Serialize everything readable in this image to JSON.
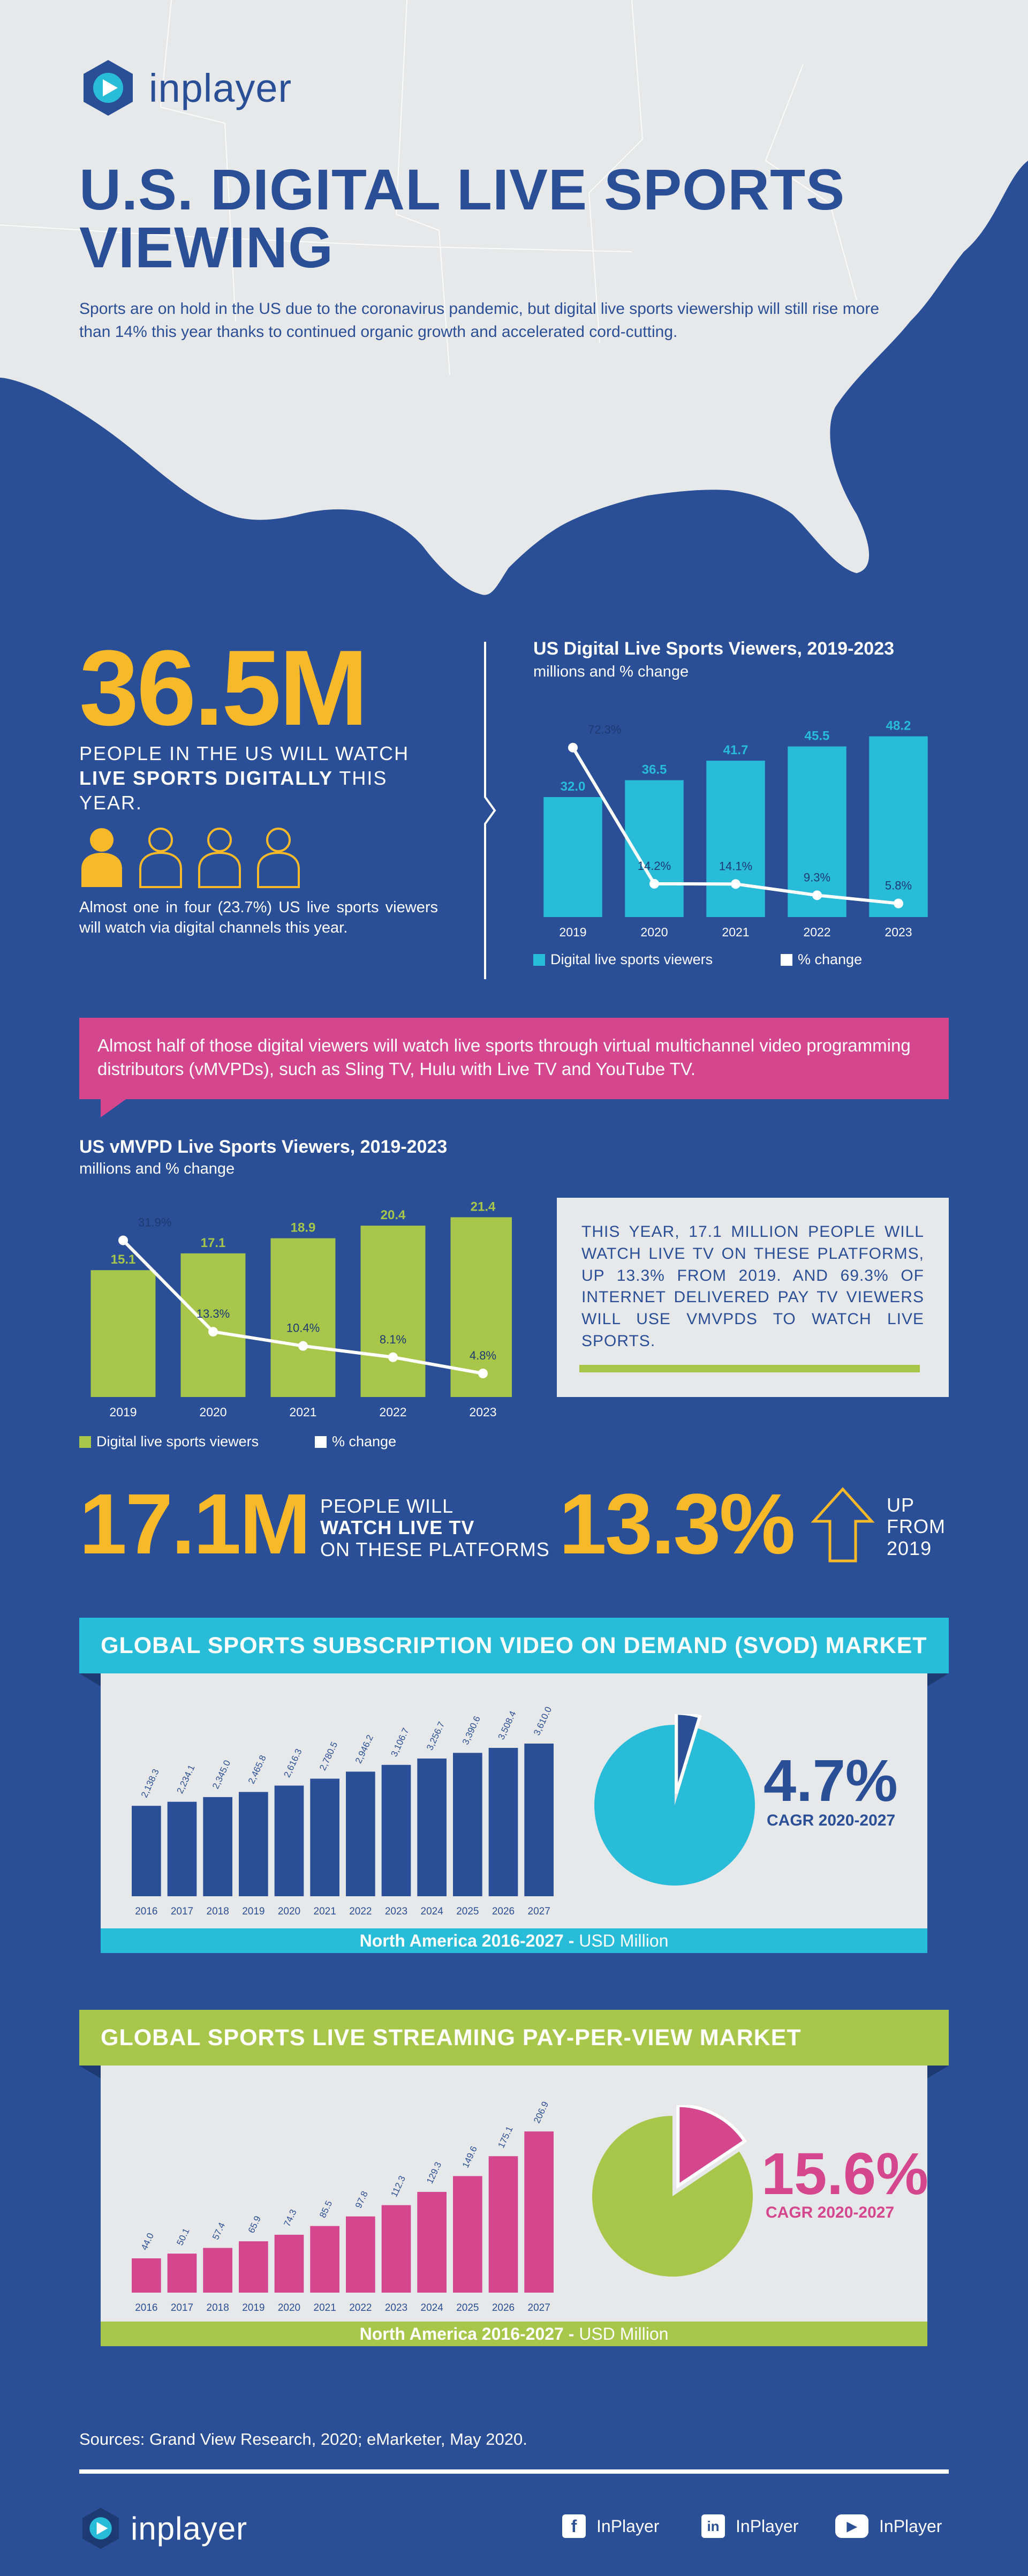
{
  "brand": {
    "name": "inplayer"
  },
  "hero": {
    "title": "U.S. DIGITAL LIVE SPORTS VIEWING",
    "subtitle": "Sports are on hold in the US due to the coronavirus pandemic, but digital live sports viewership will still rise more than 14% this year thanks to continued organic growth and accelerated cord-cutting."
  },
  "stat1": {
    "value": "36.5M",
    "line1": "PEOPLE IN THE US WILL WATCH",
    "bold": "LIVE SPORTS DIGITALLY",
    "rest": " THIS YEAR.",
    "caption": "Almost one in four (23.7%) US live sports viewers will watch via digital channels this year."
  },
  "banner": {
    "text": "Almost half of those digital viewers will watch live sports through virtual multichannel video programming distributors (vMVPDs), such as Sling TV, Hulu with Live TV and YouTube TV."
  },
  "info_box": {
    "text": "THIS YEAR, 17.1 MILLION PEOPLE WILL WATCH LIVE TV ON THESE PLATFORMS, UP 13.3% FROM 2019. AND 69.3% OF INTERNET DELIVERED PAY TV VIEWERS WILL USE VMVPDS TO WATCH LIVE SPORTS."
  },
  "stat2": {
    "value": "17.1M",
    "line1": "PEOPLE WILL",
    "bold": "WATCH LIVE TV",
    "line3": "ON THESE PLATFORMS",
    "pct": "13.3%",
    "up_line1": "UP",
    "up_line2": "FROM",
    "up_line3": "2019"
  },
  "svod": {
    "header": "GLOBAL SPORTS SUBSCRIPTION VIDEO ON DEMAND (SVOD) MARKET",
    "cagr": "4.7%",
    "cagr_label": "CAGR 2020-2027",
    "footer_bold": "North America 2016-2027 - ",
    "footer_rest": "USD Million"
  },
  "ppv": {
    "header": "GLOBAL SPORTS LIVE STREAMING PAY-PER-VIEW MARKET",
    "cagr": "15.6%",
    "cagr_label": "CAGR 2020-2027",
    "footer_bold": "North America 2016-2027 - ",
    "footer_rest": "USD Million"
  },
  "sources": "Sources: Grand View Research, 2020; eMarketer, May 2020.",
  "social": [
    {
      "icon": "facebook-icon",
      "label": "InPlayer"
    },
    {
      "icon": "linkedin-icon",
      "label": "InPlayer"
    },
    {
      "icon": "youtube-icon",
      "label": "InPlayer"
    }
  ],
  "colors": {
    "navy": "#2a4f96",
    "cyan": "#29bcd9",
    "green": "#a7c64a",
    "pink": "#d4478f",
    "yellow": "#f8b928",
    "light": "#e7e8ea"
  },
  "chart_data": [
    {
      "type": "bar",
      "title": "US Digital Live Sports Viewers, 2019-2023",
      "subtitle": "millions and % change",
      "categories": [
        "2019",
        "2020",
        "2021",
        "2022",
        "2023"
      ],
      "series": [
        {
          "name": "Digital live sports viewers",
          "values": [
            32.0,
            36.5,
            41.7,
            45.5,
            48.2
          ],
          "labels": [
            "32.0",
            "36.5",
            "41.7",
            "45.5",
            "48.2"
          ]
        },
        {
          "name": "% change",
          "type": "line",
          "values": [
            72.3,
            14.2,
            14.1,
            9.3,
            5.8
          ],
          "labels": [
            "72.3%",
            "14.2%",
            "14.1%",
            "9.3%",
            "5.8%"
          ]
        }
      ]
    },
    {
      "type": "bar",
      "title": "US vMVPD Live Sports Viewers, 2019-2023",
      "subtitle": "millions and % change",
      "categories": [
        "2019",
        "2020",
        "2021",
        "2022",
        "2023"
      ],
      "series": [
        {
          "name": "Digital live sports viewers",
          "values": [
            15.1,
            17.1,
            18.9,
            20.4,
            21.4
          ],
          "labels": [
            "15.1",
            "17.1",
            "18.9",
            "20.4",
            "21.4"
          ]
        },
        {
          "name": "% change",
          "type": "line",
          "values": [
            31.9,
            13.3,
            10.4,
            8.1,
            4.8
          ],
          "labels": [
            "31.9%",
            "13.3%",
            "10.4%",
            "8.1%",
            "4.8%"
          ]
        }
      ]
    },
    {
      "type": "bar",
      "categories": [
        "2016",
        "2017",
        "2018",
        "2019",
        "2020",
        "2021",
        "2022",
        "2023",
        "2024",
        "2025",
        "2026",
        "2027"
      ],
      "values": [
        2138.3,
        2234.1,
        2345.0,
        2465.8,
        2616.3,
        2780.5,
        2946.2,
        3106.7,
        3256.7,
        3390.6,
        3508.4,
        3610.0
      ],
      "labels": [
        "2,138.3",
        "2,234.1",
        "2,345.0",
        "2,465.8",
        "2,616.3",
        "2,780.5",
        "2,946.2",
        "3,106.7",
        "3,256.7",
        "3,390.6",
        "3,508.4",
        "3,610.0"
      ]
    },
    {
      "type": "pie",
      "values": [
        95.3,
        4.7
      ],
      "labels": [
        "",
        "4.7%"
      ]
    },
    {
      "type": "bar",
      "categories": [
        "2016",
        "2017",
        "2018",
        "2019",
        "2020",
        "2021",
        "2022",
        "2023",
        "2024",
        "2025",
        "2026",
        "2027"
      ],
      "values": [
        44.0,
        50.1,
        57.4,
        65.9,
        74.3,
        85.5,
        97.8,
        112.3,
        129.3,
        149.6,
        175.1,
        206.9
      ],
      "labels": [
        "44.0",
        "50.1",
        "57.4",
        "65.9",
        "74.3",
        "85.5",
        "97.8",
        "112.3",
        "129.3",
        "149.6",
        "175.1",
        "206.9"
      ]
    },
    {
      "type": "pie",
      "values": [
        84.4,
        15.6
      ],
      "labels": [
        "",
        "15.6%"
      ]
    }
  ]
}
